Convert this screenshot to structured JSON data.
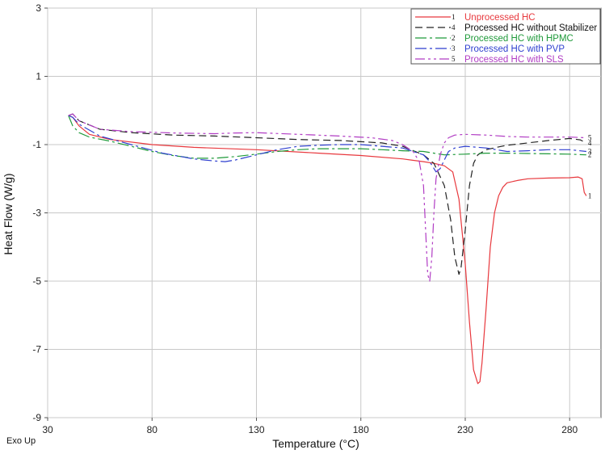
{
  "chart_data": {
    "type": "line",
    "title": "",
    "xlabel": "Temperature (°C)",
    "ylabel": "Heat Flow (W/g)",
    "corner_note": "Exo Up",
    "xlim": [
      30,
      295
    ],
    "ylim": [
      -9,
      3
    ],
    "x_ticks": [
      30,
      80,
      130,
      180,
      230,
      280
    ],
    "y_ticks": [
      3,
      1,
      -1,
      -3,
      -5,
      -7,
      -9
    ],
    "grid": true,
    "legend_position": "top-right",
    "series": [
      {
        "name": "Unprocessed HC",
        "marker": "1",
        "color": "#e8383d",
        "dash": "",
        "x": [
          40,
          42,
          45,
          50,
          60,
          80,
          100,
          130,
          160,
          180,
          200,
          210,
          215,
          220,
          224,
          227,
          230,
          232,
          234,
          236,
          237,
          238,
          240,
          242,
          244,
          246,
          248,
          250,
          255,
          260,
          270,
          280,
          284,
          286,
          287,
          288
        ],
        "y": [
          -0.15,
          -0.2,
          -0.45,
          -0.7,
          -0.85,
          -1.0,
          -1.08,
          -1.15,
          -1.25,
          -1.32,
          -1.42,
          -1.5,
          -1.55,
          -1.62,
          -1.8,
          -2.6,
          -4.5,
          -6.2,
          -7.6,
          -8.0,
          -7.95,
          -7.4,
          -5.8,
          -4.0,
          -3.0,
          -2.5,
          -2.25,
          -2.12,
          -2.05,
          -2.0,
          -1.98,
          -1.97,
          -1.95,
          -2.0,
          -2.4,
          -2.5
        ]
      },
      {
        "name": "Processed HC without Stabilizer",
        "marker": "4",
        "color": "#222222",
        "dash": "9,5",
        "x": [
          40,
          42,
          45,
          55,
          70,
          90,
          110,
          130,
          150,
          170,
          190,
          200,
          210,
          215,
          220,
          223,
          225,
          227,
          228,
          230,
          232,
          234,
          236,
          240,
          245,
          250,
          260,
          270,
          280,
          285,
          288
        ],
        "y": [
          -0.15,
          -0.1,
          -0.3,
          -0.55,
          -0.65,
          -0.72,
          -0.75,
          -0.8,
          -0.85,
          -0.88,
          -0.95,
          -1.05,
          -1.3,
          -1.55,
          -2.2,
          -3.2,
          -4.3,
          -4.8,
          -4.6,
          -3.5,
          -2.2,
          -1.55,
          -1.3,
          -1.15,
          -1.08,
          -1.02,
          -0.95,
          -0.88,
          -0.82,
          -0.86,
          -0.95
        ]
      },
      {
        "name": "Processed HC with HPMC",
        "marker": "2",
        "color": "#1f9a3a",
        "dash": "14,4,3,4",
        "x": [
          40,
          42,
          45,
          50,
          60,
          70,
          80,
          90,
          100,
          110,
          120,
          130,
          140,
          150,
          160,
          170,
          180,
          190,
          200,
          210,
          215,
          220,
          230,
          240,
          250,
          260,
          270,
          280,
          288
        ],
        "y": [
          -0.15,
          -0.45,
          -0.65,
          -0.78,
          -0.9,
          -1.05,
          -1.2,
          -1.32,
          -1.4,
          -1.4,
          -1.35,
          -1.28,
          -1.2,
          -1.15,
          -1.12,
          -1.12,
          -1.12,
          -1.15,
          -1.18,
          -1.2,
          -1.25,
          -1.3,
          -1.28,
          -1.25,
          -1.25,
          -1.26,
          -1.27,
          -1.28,
          -1.3
        ]
      },
      {
        "name": "Processed HC with PVP",
        "marker": "3",
        "color": "#2e3fcf",
        "dash": "14,4,3,4",
        "x": [
          40,
          42,
          45,
          55,
          70,
          85,
          100,
          110,
          115,
          120,
          130,
          140,
          150,
          160,
          170,
          180,
          190,
          200,
          210,
          213,
          216,
          218,
          220,
          222,
          225,
          230,
          240,
          250,
          260,
          270,
          280,
          288
        ],
        "y": [
          -0.15,
          -0.2,
          -0.4,
          -0.75,
          -1.0,
          -1.25,
          -1.42,
          -1.48,
          -1.5,
          -1.45,
          -1.3,
          -1.15,
          -1.05,
          -1.02,
          -1.0,
          -1.0,
          -1.05,
          -1.1,
          -1.3,
          -1.5,
          -1.8,
          -1.7,
          -1.45,
          -1.2,
          -1.1,
          -1.05,
          -1.1,
          -1.2,
          -1.18,
          -1.15,
          -1.15,
          -1.2
        ]
      },
      {
        "name": "Processed HC with SLS",
        "marker": "5",
        "color": "#b13cc4",
        "dash": "12,4,3,4,3,4",
        "x": [
          40,
          42,
          45,
          55,
          70,
          90,
          110,
          120,
          130,
          150,
          170,
          185,
          195,
          200,
          205,
          208,
          210,
          211,
          212,
          213,
          214,
          215,
          216,
          218,
          220,
          222,
          225,
          230,
          240,
          250,
          260,
          270,
          280,
          288
        ],
        "y": [
          -0.15,
          -0.1,
          -0.3,
          -0.55,
          -0.62,
          -0.66,
          -0.68,
          -0.66,
          -0.65,
          -0.7,
          -0.75,
          -0.8,
          -0.88,
          -1.0,
          -1.2,
          -1.5,
          -2.2,
          -3.5,
          -4.8,
          -5.0,
          -4.3,
          -3.0,
          -2.0,
          -1.3,
          -0.95,
          -0.8,
          -0.72,
          -0.7,
          -0.72,
          -0.76,
          -0.78,
          -0.78,
          -0.78,
          -0.8
        ]
      }
    ]
  }
}
